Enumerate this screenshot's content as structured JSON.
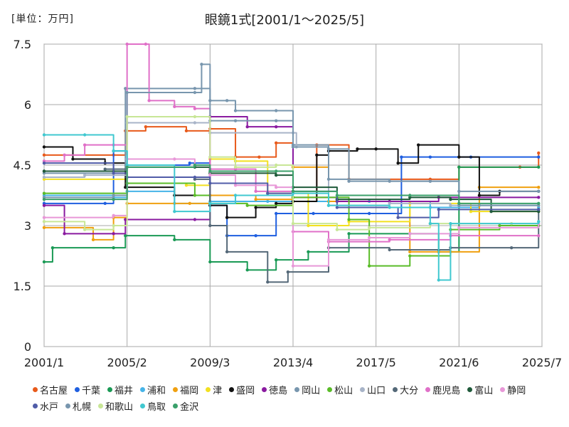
{
  "chart_data": {
    "type": "line",
    "title": "眼鏡1式[2001/1～2025/5]",
    "unit_label": "[単位：万円]",
    "y_ticks": [
      "7.5",
      "6",
      "4.5",
      "3",
      "1.5",
      "0"
    ],
    "x_ticks": [
      "2001/1",
      "2005/2",
      "2009/3",
      "2013/4",
      "2017/5",
      "2021/6",
      "2025/7"
    ],
    "ylim": [
      0,
      7.5
    ],
    "xlim": [
      "2001/1",
      "2025/7"
    ],
    "grid": true,
    "legend_position": "bottom",
    "series": [
      {
        "name": "名古屋",
        "color": "#e85a1b",
        "points": [
          [
            "2001/1",
            4.75
          ],
          [
            "2004/6",
            4.75
          ],
          [
            "2005/1",
            5.35
          ],
          [
            "2006/1",
            5.45
          ],
          [
            "2008/1",
            5.35
          ],
          [
            "2009/3",
            5.4
          ],
          [
            "2010/6",
            4.7
          ],
          [
            "2011/8",
            4.7
          ],
          [
            "2012/6",
            5.05
          ],
          [
            "2013/4",
            3.6
          ],
          [
            "2014/6",
            5.0
          ],
          [
            "2016/1",
            4.15
          ],
          [
            "2020/1",
            4.15
          ],
          [
            "2021/6",
            4.45
          ],
          [
            "2024/6",
            4.45
          ],
          [
            "2025/5",
            4.8
          ]
        ]
      },
      {
        "name": "千葉",
        "color": "#1f5fe0",
        "points": [
          [
            "2001/1",
            3.55
          ],
          [
            "2004/1",
            3.55
          ],
          [
            "2004/6",
            4.85
          ],
          [
            "2005/2",
            4.5
          ],
          [
            "2008/3",
            4.55
          ],
          [
            "2009/3",
            3.5
          ],
          [
            "2010/1",
            2.75
          ],
          [
            "2011/6",
            2.75
          ],
          [
            "2012/6",
            3.3
          ],
          [
            "2014/4",
            3.3
          ],
          [
            "2017/1",
            3.3
          ],
          [
            "2018/8",
            4.7
          ],
          [
            "2020/1",
            4.7
          ],
          [
            "2022/1",
            4.7
          ],
          [
            "2025/5",
            4.7
          ]
        ]
      },
      {
        "name": "福井",
        "color": "#1a9a55",
        "points": [
          [
            "2001/1",
            2.1
          ],
          [
            "2001/6",
            2.45
          ],
          [
            "2004/6",
            2.45
          ],
          [
            "2005/1",
            2.75
          ],
          [
            "2007/6",
            2.65
          ],
          [
            "2009/3",
            2.1
          ],
          [
            "2011/1",
            1.9
          ],
          [
            "2012/6",
            2.15
          ],
          [
            "2014/1",
            2.35
          ],
          [
            "2016/1",
            2.8
          ],
          [
            "2019/1",
            2.8
          ],
          [
            "2020/6",
            2.35
          ],
          [
            "2021/6",
            4.45
          ],
          [
            "2025/5",
            4.45
          ]
        ]
      },
      {
        "name": "浦和",
        "color": "#46b4e8",
        "points": [
          [
            "2001/1",
            3.75
          ],
          [
            "2004/6",
            3.7
          ],
          [
            "2005/2",
            3.85
          ],
          [
            "2007/6",
            3.55
          ],
          [
            "2009/3",
            3.6
          ],
          [
            "2012/1",
            3.6
          ],
          [
            "2014/1",
            3.6
          ],
          [
            "2017/1",
            3.6
          ],
          [
            "2020/1",
            3.45
          ],
          [
            "2022/6",
            3.5
          ],
          [
            "2025/5",
            3.45
          ]
        ]
      },
      {
        "name": "福岡",
        "color": "#f0a010",
        "points": [
          [
            "2001/1",
            2.95
          ],
          [
            "2003/6",
            2.65
          ],
          [
            "2004/6",
            3.2
          ],
          [
            "2005/2",
            3.55
          ],
          [
            "2008/3",
            3.55
          ],
          [
            "2009/3",
            3.75
          ],
          [
            "2011/6",
            3.65
          ],
          [
            "2013/4",
            4.45
          ],
          [
            "2015/1",
            3.6
          ],
          [
            "2019/1",
            2.35
          ],
          [
            "2021/1",
            2.35
          ],
          [
            "2022/6",
            3.95
          ],
          [
            "2025/5",
            3.95
          ]
        ]
      },
      {
        "name": "津",
        "color": "#f2e020",
        "points": [
          [
            "2001/1",
            4.15
          ],
          [
            "2005/2",
            4.05
          ],
          [
            "2008/1",
            4.0
          ],
          [
            "2009/3",
            4.65
          ],
          [
            "2010/6",
            4.6
          ],
          [
            "2012/1",
            3.8
          ],
          [
            "2014/1",
            3.0
          ],
          [
            "2016/1",
            3.1
          ],
          [
            "2019/1",
            3.55
          ],
          [
            "2022/1",
            3.35
          ],
          [
            "2025/5",
            3.35
          ]
        ]
      },
      {
        "name": "盛岡",
        "color": "#111111",
        "points": [
          [
            "2001/1",
            4.95
          ],
          [
            "2002/6",
            4.65
          ],
          [
            "2004/1",
            4.55
          ],
          [
            "2005/1",
            3.95
          ],
          [
            "2007/6",
            3.75
          ],
          [
            "2009/3",
            3.5
          ],
          [
            "2010/1",
            3.2
          ],
          [
            "2011/6",
            3.45
          ],
          [
            "2012/6",
            3.55
          ],
          [
            "2013/4",
            3.6
          ],
          [
            "2014/6",
            4.75
          ],
          [
            "2015/1",
            4.85
          ],
          [
            "2016/6",
            4.9
          ],
          [
            "2017/5",
            4.9
          ],
          [
            "2018/6",
            4.55
          ],
          [
            "2019/6",
            5.0
          ],
          [
            "2021/6",
            4.7
          ],
          [
            "2022/6",
            3.75
          ],
          [
            "2023/6",
            3.85
          ],
          [
            "2025/5",
            3.85
          ]
        ]
      },
      {
        "name": "徳島",
        "color": "#8a1aa0",
        "points": [
          [
            "2001/1",
            3.5
          ],
          [
            "2002/1",
            2.8
          ],
          [
            "2004/6",
            2.8
          ],
          [
            "2005/1",
            3.15
          ],
          [
            "2008/6",
            3.15
          ],
          [
            "2009/3",
            5.7
          ],
          [
            "2011/1",
            5.45
          ],
          [
            "2012/6",
            5.45
          ],
          [
            "2013/4",
            3.7
          ],
          [
            "2015/6",
            3.6
          ],
          [
            "2018/1",
            3.6
          ],
          [
            "2020/6",
            3.7
          ],
          [
            "2025/5",
            3.7
          ]
        ]
      },
      {
        "name": "岡山",
        "color": "#7896ae",
        "points": [
          [
            "2001/1",
            4.3
          ],
          [
            "2004/6",
            4.35
          ],
          [
            "2005/1",
            6.4
          ],
          [
            "2008/6",
            6.4
          ],
          [
            "2009/3",
            6.1
          ],
          [
            "2010/1",
            6.1
          ],
          [
            "2010/6",
            5.85
          ],
          [
            "2012/6",
            5.85
          ],
          [
            "2013/4",
            5.0
          ],
          [
            "2015/1",
            4.9
          ],
          [
            "2016/1",
            4.1
          ],
          [
            "2020/1",
            4.1
          ],
          [
            "2021/6",
            3.85
          ],
          [
            "2025/5",
            3.85
          ]
        ]
      },
      {
        "name": "松山",
        "color": "#5abc28",
        "points": [
          [
            "2001/1",
            3.8
          ],
          [
            "2005/2",
            4.05
          ],
          [
            "2008/6",
            3.75
          ],
          [
            "2009/3",
            3.55
          ],
          [
            "2011/1",
            3.5
          ],
          [
            "2013/4",
            3.7
          ],
          [
            "2016/1",
            3.15
          ],
          [
            "2017/1",
            2.0
          ],
          [
            "2019/1",
            2.25
          ],
          [
            "2021/1",
            2.9
          ],
          [
            "2023/6",
            3.0
          ],
          [
            "2025/5",
            3.0
          ]
        ]
      },
      {
        "name": "山口",
        "color": "#a8b4c8",
        "points": [
          [
            "2001/1",
            4.2
          ],
          [
            "2003/1",
            4.25
          ],
          [
            "2005/2",
            5.55
          ],
          [
            "2008/6",
            5.55
          ],
          [
            "2009/3",
            5.3
          ],
          [
            "2013/4",
            5.3
          ],
          [
            "2013/6",
            4.95
          ],
          [
            "2015/1",
            3.5
          ],
          [
            "2018/1",
            3.55
          ],
          [
            "2021/1",
            3.5
          ],
          [
            "2025/5",
            3.5
          ]
        ]
      },
      {
        "name": "大分",
        "color": "#546878",
        "points": [
          [
            "2001/1",
            4.35
          ],
          [
            "2004/1",
            4.4
          ],
          [
            "2005/2",
            4.2
          ],
          [
            "2008/6",
            4.15
          ],
          [
            "2009/3",
            3.0
          ],
          [
            "2010/1",
            2.35
          ],
          [
            "2012/1",
            1.6
          ],
          [
            "2013/1",
            1.85
          ],
          [
            "2015/1",
            2.45
          ],
          [
            "2018/1",
            2.4
          ],
          [
            "2021/1",
            2.45
          ],
          [
            "2024/1",
            2.45
          ],
          [
            "2025/5",
            3.4
          ]
        ]
      },
      {
        "name": "鹿児島",
        "color": "#e070c8",
        "points": [
          [
            "2001/1",
            4.6
          ],
          [
            "2002/1",
            4.75
          ],
          [
            "2003/1",
            5.0
          ],
          [
            "2004/6",
            5.0
          ],
          [
            "2005/2",
            7.5
          ],
          [
            "2006/1",
            7.5
          ],
          [
            "2006/3",
            6.1
          ],
          [
            "2007/6",
            5.95
          ],
          [
            "2008/6",
            5.9
          ],
          [
            "2009/3",
            4.4
          ],
          [
            "2010/6",
            4.4
          ],
          [
            "2011/6",
            3.85
          ],
          [
            "2013/4",
            2.85
          ],
          [
            "2015/1",
            2.6
          ],
          [
            "2018/1",
            2.65
          ],
          [
            "2021/1",
            2.75
          ],
          [
            "2025/5",
            2.75
          ]
        ]
      },
      {
        "name": "富山",
        "color": "#1f5a3a",
        "points": [
          [
            "2001/1",
            4.35
          ],
          [
            "2005/2",
            4.45
          ],
          [
            "2008/6",
            4.45
          ],
          [
            "2009/3",
            4.3
          ],
          [
            "2012/6",
            4.25
          ],
          [
            "2013/4",
            3.95
          ],
          [
            "2015/6",
            3.65
          ],
          [
            "2019/1",
            3.7
          ],
          [
            "2021/1",
            3.65
          ],
          [
            "2023/1",
            3.35
          ],
          [
            "2025/5",
            3.35
          ]
        ]
      },
      {
        "name": "静岡",
        "color": "#e898d8",
        "points": [
          [
            "2001/1",
            3.2
          ],
          [
            "2004/6",
            3.25
          ],
          [
            "2005/2",
            4.65
          ],
          [
            "2007/6",
            4.65
          ],
          [
            "2008/6",
            4.5
          ],
          [
            "2009/3",
            4.25
          ],
          [
            "2010/6",
            4.0
          ],
          [
            "2012/6",
            3.95
          ],
          [
            "2013/4",
            2.0
          ],
          [
            "2015/1",
            2.65
          ],
          [
            "2017/1",
            2.7
          ],
          [
            "2019/1",
            2.8
          ],
          [
            "2021/6",
            2.95
          ],
          [
            "2025/5",
            3.05
          ]
        ]
      },
      {
        "name": "水戸",
        "color": "#505ca8",
        "points": [
          [
            "2001/1",
            4.55
          ],
          [
            "2004/6",
            4.3
          ],
          [
            "2005/2",
            4.2
          ],
          [
            "2008/6",
            4.2
          ],
          [
            "2009/3",
            4.05
          ],
          [
            "2012/1",
            3.8
          ],
          [
            "2013/4",
            3.85
          ],
          [
            "2015/6",
            3.45
          ],
          [
            "2018/6",
            3.2
          ],
          [
            "2020/6",
            3.4
          ],
          [
            "2025/5",
            3.4
          ]
        ]
      },
      {
        "name": "札幌",
        "color": "#7896ae",
        "points": [
          [
            "2001/1",
            3.7
          ],
          [
            "2004/6",
            3.75
          ],
          [
            "2005/2",
            6.3
          ],
          [
            "2008/6",
            6.3
          ],
          [
            "2008/10",
            7.0
          ],
          [
            "2009/3",
            5.6
          ],
          [
            "2010/6",
            5.6
          ],
          [
            "2012/6",
            5.6
          ],
          [
            "2013/4",
            4.95
          ],
          [
            "2015/1",
            4.15
          ],
          [
            "2018/1",
            4.1
          ],
          [
            "2020/1",
            4.1
          ],
          [
            "2021/6",
            3.5
          ],
          [
            "2025/5",
            3.5
          ]
        ]
      },
      {
        "name": "和歌山",
        "color": "#c8e696",
        "points": [
          [
            "2001/1",
            3.1
          ],
          [
            "2003/1",
            2.9
          ],
          [
            "2004/6",
            3.0
          ],
          [
            "2005/2",
            5.7
          ],
          [
            "2008/6",
            5.7
          ],
          [
            "2009/3",
            4.7
          ],
          [
            "2010/6",
            4.45
          ],
          [
            "2012/6",
            4.5
          ],
          [
            "2013/4",
            3.05
          ],
          [
            "2015/6",
            2.9
          ],
          [
            "2017/1",
            2.95
          ],
          [
            "2020/1",
            3.05
          ],
          [
            "2024/1",
            3.05
          ],
          [
            "2025/5",
            3.1
          ]
        ]
      },
      {
        "name": "鳥取",
        "color": "#40c8d0",
        "points": [
          [
            "2001/1",
            5.25
          ],
          [
            "2003/1",
            5.25
          ],
          [
            "2004/6",
            4.85
          ],
          [
            "2005/2",
            4.5
          ],
          [
            "2007/6",
            3.35
          ],
          [
            "2009/3",
            3.55
          ],
          [
            "2010/6",
            3.75
          ],
          [
            "2013/4",
            3.8
          ],
          [
            "2015/1",
            3.5
          ],
          [
            "2018/1",
            3.45
          ],
          [
            "2020/1",
            3.05
          ],
          [
            "2020/6",
            1.65
          ],
          [
            "2021/1",
            3.05
          ],
          [
            "2025/5",
            3.1
          ]
        ]
      },
      {
        "name": "金沢",
        "color": "#3aa06a",
        "points": [
          [
            "2001/1",
            3.65
          ],
          [
            "2004/6",
            3.65
          ],
          [
            "2005/2",
            4.45
          ],
          [
            "2008/6",
            4.5
          ],
          [
            "2009/3",
            4.35
          ],
          [
            "2012/6",
            4.35
          ],
          [
            "2013/4",
            3.85
          ],
          [
            "2015/6",
            3.75
          ],
          [
            "2019/1",
            3.75
          ],
          [
            "2021/6",
            3.55
          ],
          [
            "2025/5",
            3.55
          ]
        ]
      }
    ]
  }
}
